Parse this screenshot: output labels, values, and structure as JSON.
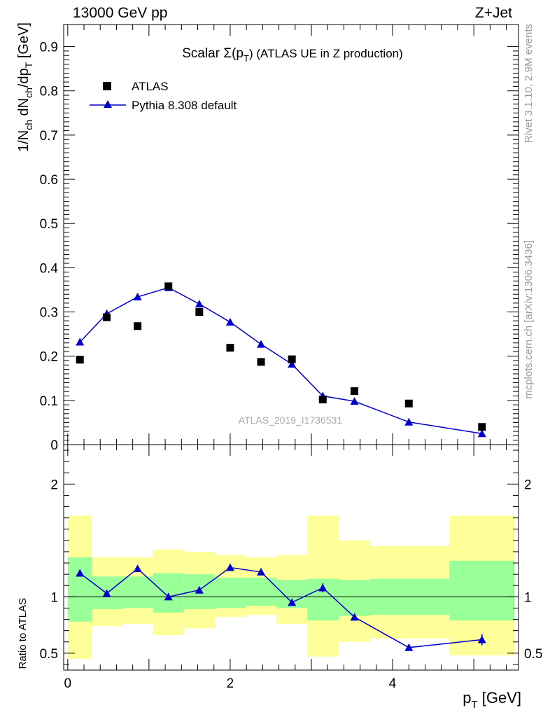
{
  "header": {
    "left": "13000 GeV pp",
    "right": "Z+Jet"
  },
  "side_text": {
    "rivet": "Rivet 3.1.10,  2.9M events",
    "mcplots": "mcplots.cern.ch [arXiv:1306.3436]"
  },
  "chart_data": {
    "type": "scatter",
    "title": "Scalar Σ(p_T) (ATLAS UE in Z production)",
    "watermark": "ATLAS_2019_I1736531",
    "xlabel": "p_T [GeV]",
    "ylabel_main": "1/N_ch dN_ch/dp_T [GeV]",
    "ylabel_ratio": "Ratio to ATLAS",
    "xlim": [
      -0.05,
      5.55
    ],
    "ylim_main": [
      0,
      0.95
    ],
    "ylim_ratio": [
      0.35,
      2.35
    ],
    "x_ticks": [
      "0",
      "2",
      "4"
    ],
    "y_ticks_main": [
      "0",
      "0.1",
      "0.2",
      "0.3",
      "0.4",
      "0.5",
      "0.6",
      "0.7",
      "0.8",
      "0.9"
    ],
    "y_ticks_ratio": [
      "0.5",
      "1",
      "2"
    ],
    "legend": {
      "position": "top-left",
      "entries": [
        "ATLAS",
        "Pythia 8.308 default"
      ]
    },
    "series": [
      {
        "name": "ATLAS",
        "marker": "square",
        "color": "#000000",
        "x": [
          0.15,
          0.48,
          0.86,
          1.24,
          1.62,
          2.0,
          2.38,
          2.76,
          3.14,
          3.53,
          4.2,
          5.1
        ],
        "y": [
          0.192,
          0.288,
          0.268,
          0.358,
          0.3,
          0.219,
          0.187,
          0.193,
          0.102,
          0.121,
          0.093,
          0.04
        ]
      },
      {
        "name": "Pythia 8.308 default",
        "marker": "triangle",
        "color": "#0000cc",
        "x": [
          0.15,
          0.48,
          0.86,
          1.24,
          1.62,
          2.0,
          2.38,
          2.76,
          3.14,
          3.53,
          4.2,
          5.1
        ],
        "y": [
          0.232,
          0.296,
          0.334,
          0.355,
          0.318,
          0.277,
          0.227,
          0.182,
          0.11,
          0.098,
          0.051,
          0.025
        ],
        "yerr": [
          0.008,
          0.009,
          0.008,
          0.007,
          0.008,
          0.007,
          0.006,
          0.006,
          0.005,
          0.004,
          0.003,
          0.003
        ],
        "ratio": [
          1.21,
          1.03,
          1.25,
          1.0,
          1.06,
          1.26,
          1.22,
          0.95,
          1.08,
          0.82,
          0.55,
          0.62
        ],
        "ratio_err": [
          0.03,
          0.025,
          0.025,
          0.02,
          0.02,
          0.02,
          0.02,
          0.025,
          0.04,
          0.03,
          0.03,
          0.05
        ]
      }
    ],
    "bands": {
      "bins": [
        [
          0.0,
          0.3
        ],
        [
          0.3,
          0.67
        ],
        [
          0.67,
          1.05
        ],
        [
          1.05,
          1.43
        ],
        [
          1.43,
          1.81
        ],
        [
          1.81,
          2.19
        ],
        [
          2.19,
          2.57
        ],
        [
          2.57,
          2.95
        ],
        [
          2.95,
          3.34
        ],
        [
          3.34,
          3.72
        ],
        [
          3.72,
          4.7
        ],
        [
          4.7,
          5.5
        ]
      ],
      "inner": [
        [
          0.78,
          1.35
        ],
        [
          0.89,
          1.18
        ],
        [
          0.9,
          1.18
        ],
        [
          0.86,
          1.21
        ],
        [
          0.89,
          1.2
        ],
        [
          0.9,
          1.17
        ],
        [
          0.92,
          1.17
        ],
        [
          0.9,
          1.15
        ],
        [
          0.79,
          1.16
        ],
        [
          0.83,
          1.15
        ],
        [
          0.84,
          1.16
        ],
        [
          0.79,
          1.32
        ]
      ],
      "outer": [
        [
          0.45,
          1.72
        ],
        [
          0.74,
          1.35
        ],
        [
          0.76,
          1.35
        ],
        [
          0.66,
          1.42
        ],
        [
          0.72,
          1.4
        ],
        [
          0.82,
          1.37
        ],
        [
          0.84,
          1.35
        ],
        [
          0.76,
          1.37
        ],
        [
          0.47,
          1.72
        ],
        [
          0.6,
          1.5
        ],
        [
          0.63,
          1.45
        ],
        [
          0.48,
          1.72
        ]
      ],
      "inner_color": "#99ff99",
      "outer_color": "#ffff99"
    }
  }
}
